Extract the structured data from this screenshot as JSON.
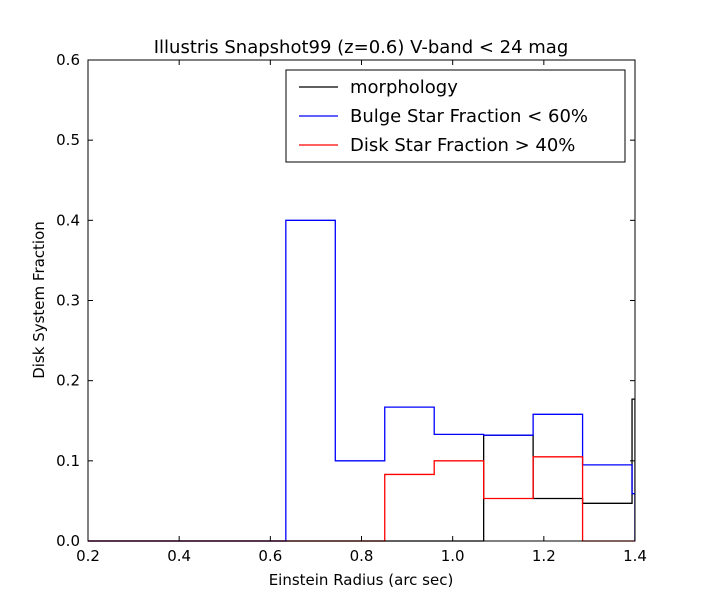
{
  "chart_data": {
    "type": "histogram",
    "title": "Illustris Snapshot99 (z=0.6) V-band < 24 mag",
    "xlabel": "Einstein Radius (arc sec)",
    "ylabel": "Disk System Fraction",
    "xlim": [
      0.2,
      1.4
    ],
    "ylim": [
      0.0,
      0.6
    ],
    "xticks": [
      "0.2",
      "0.4",
      "0.6",
      "0.8",
      "1.0",
      "1.2",
      "1.4"
    ],
    "yticks": [
      "0.0",
      "0.1",
      "0.2",
      "0.3",
      "0.4",
      "0.5",
      "0.6"
    ],
    "grid": false,
    "legend_position": "top-right",
    "series": [
      {
        "name": "morphology",
        "color": "#000000",
        "edges": [
          0.2,
          0.3085,
          0.417,
          0.5255,
          0.634,
          0.7425,
          0.851,
          0.9595,
          1.068,
          1.1765,
          1.285,
          1.3935,
          1.4
        ],
        "values": [
          0.0,
          0.0,
          0.0,
          0.0,
          0.0,
          0.0,
          0.0,
          0.0,
          0.132,
          0.053,
          0.047,
          0.177
        ]
      },
      {
        "name": "Bulge Star Fraction < 60%",
        "color": "#0000ff",
        "edges": [
          0.2,
          0.3085,
          0.417,
          0.5255,
          0.634,
          0.7425,
          0.851,
          0.9595,
          1.068,
          1.1765,
          1.285,
          1.3935,
          1.4
        ],
        "values": [
          0.0,
          0.0,
          0.0,
          0.0,
          0.4,
          0.1,
          0.167,
          0.133,
          0.132,
          0.158,
          0.095,
          0.059
        ]
      },
      {
        "name": "Disk Star Fraction > 40%",
        "color": "#ff0000",
        "edges": [
          0.2,
          0.3085,
          0.417,
          0.5255,
          0.634,
          0.7425,
          0.851,
          0.9595,
          1.068,
          1.1765,
          1.285,
          1.3935,
          1.4
        ],
        "values": [
          0.0,
          0.0,
          0.0,
          0.0,
          0.0,
          0.0,
          0.083,
          0.1,
          0.053,
          0.105,
          0.0,
          0.0
        ]
      }
    ]
  }
}
